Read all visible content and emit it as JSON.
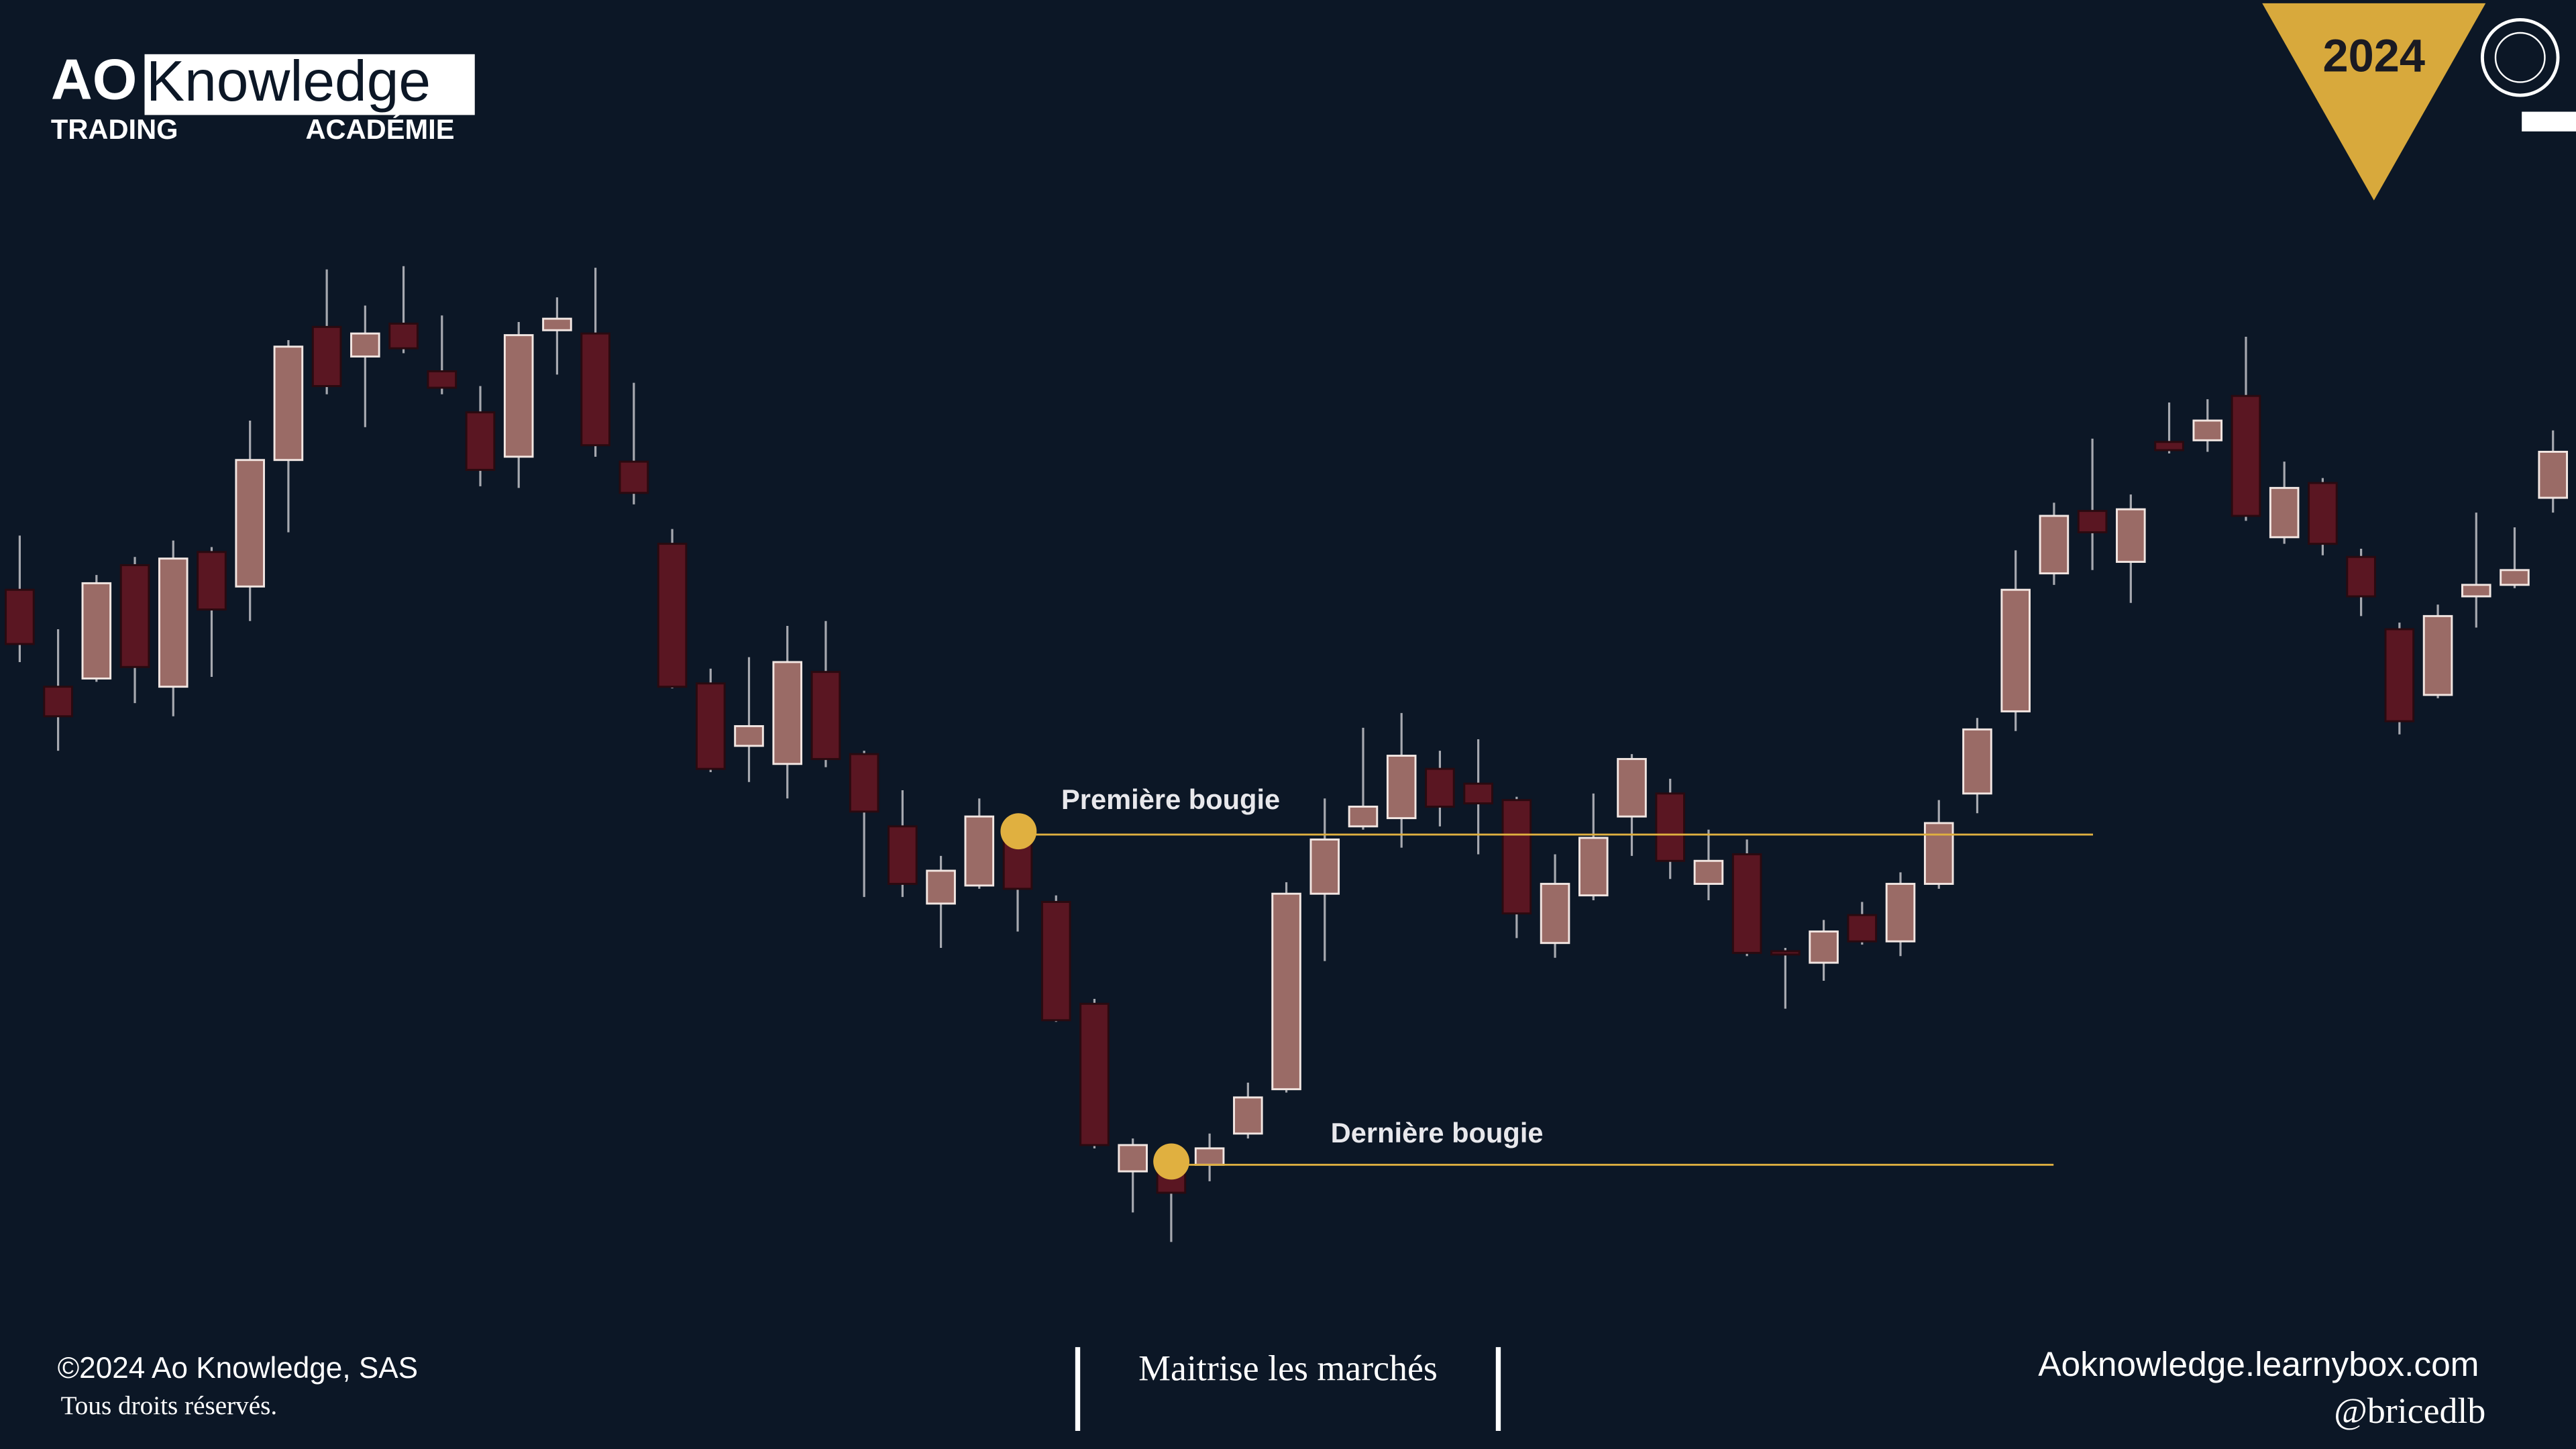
{
  "header": {
    "logo_ao": "AO",
    "logo_knowledge": "Knowledge",
    "logo_trading": "TRADING",
    "logo_academie": "ACADÉMIE",
    "year": "2024"
  },
  "chart_data": {
    "type": "candlestick",
    "open": [
      541,
      482,
      487,
      556,
      482,
      564,
      543,
      620,
      701,
      683,
      703,
      674,
      649,
      622,
      699,
      697,
      619,
      569,
      484,
      446,
      435,
      491,
      441,
      397,
      350,
      361,
      392,
      351,
      289,
      187,
      191,
      191,
      210,
      237,
      356,
      397,
      402,
      432,
      423,
      413,
      326,
      355,
      403,
      417,
      362,
      380,
      321,
      314,
      343,
      327,
      362,
      417,
      467,
      551,
      589,
      558,
      631,
      632,
      659,
      573,
      606,
      561,
      517,
      477,
      537,
      544,
      597
    ],
    "high": [
      574,
      517,
      550,
      561,
      571,
      567,
      644,
      693,
      736,
      714,
      738,
      708,
      665,
      704,
      719,
      737,
      667,
      578,
      493,
      500,
      519,
      522,
      443,
      419,
      379,
      414,
      402,
      355,
      292,
      207,
      203,
      210,
      241,
      363,
      414,
      457,
      466,
      443,
      450,
      415,
      380,
      417,
      441,
      426,
      395,
      389,
      323,
      340,
      351,
      369,
      413,
      463,
      565,
      594,
      633,
      599,
      655,
      657,
      695,
      619,
      609,
      566,
      521,
      532,
      588,
      579,
      638
    ],
    "low": [
      497,
      443,
      485,
      472,
      464,
      488,
      522,
      576,
      660,
      640,
      685,
      660,
      604,
      603,
      672,
      622,
      593,
      481,
      430,
      424,
      414,
      433,
      354,
      354,
      323,
      359,
      333,
      278,
      201,
      162,
      144,
      181,
      207,
      235,
      315,
      395,
      384,
      397,
      380,
      329,
      317,
      352,
      379,
      365,
      352,
      318,
      286,
      303,
      325,
      318,
      359,
      405,
      455,
      544,
      553,
      533,
      624,
      625,
      583,
      569,
      562,
      525,
      453,
      475,
      518,
      542,
      588
    ],
    "close": [
      508,
      464,
      545,
      494,
      560,
      529,
      620,
      689,
      665,
      697,
      688,
      664,
      614,
      696,
      706,
      629,
      600,
      482,
      432,
      458,
      497,
      438,
      406,
      362,
      370,
      403,
      359,
      279,
      203,
      203,
      174,
      201,
      232,
      356,
      389,
      409,
      440,
      409,
      411,
      344,
      362,
      390,
      438,
      376,
      376,
      320,
      319,
      333,
      327,
      362,
      399,
      456,
      541,
      586,
      576,
      590,
      626,
      644,
      586,
      603,
      569,
      537,
      461,
      525,
      544,
      553,
      625
    ],
    "up_color": "#9a6b66",
    "down_color": "#5a1622",
    "ylim": [
      18,
      900
    ],
    "annotations": [
      {
        "text": "Première bougie",
        "value": 392
      },
      {
        "text": "Dernière bougie",
        "value": 191
      }
    ],
    "annotation_color": "#e0b040"
  },
  "footer": {
    "copyright": "©2024 Ao Knowledge, SAS",
    "rights": "Tous droits réservés.",
    "slogan": "Maitrise les marchés",
    "website": "Aoknowledge.learnybox.com",
    "handle": "@bricedlb"
  }
}
